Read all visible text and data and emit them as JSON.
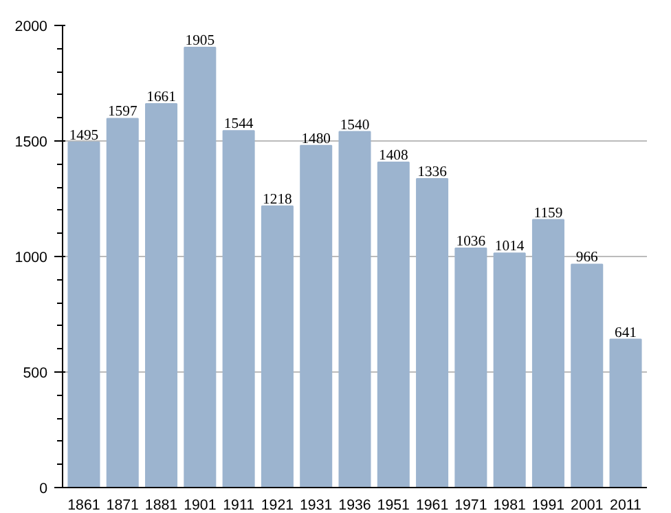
{
  "chart_data": {
    "type": "bar",
    "categories": [
      "1861",
      "1871",
      "1881",
      "1901",
      "1911",
      "1921",
      "1931",
      "1936",
      "1951",
      "1961",
      "1971",
      "1981",
      "1991",
      "2001",
      "2011"
    ],
    "values": [
      1495,
      1597,
      1661,
      1905,
      1544,
      1218,
      1480,
      1540,
      1408,
      1336,
      1036,
      1014,
      1159,
      966,
      641
    ],
    "color": "#9cb4cf",
    "ylim": [
      0,
      2000
    ],
    "yticks": [
      0,
      500,
      1000,
      1500,
      2000
    ],
    "grid": "y",
    "data_labels": true
  }
}
